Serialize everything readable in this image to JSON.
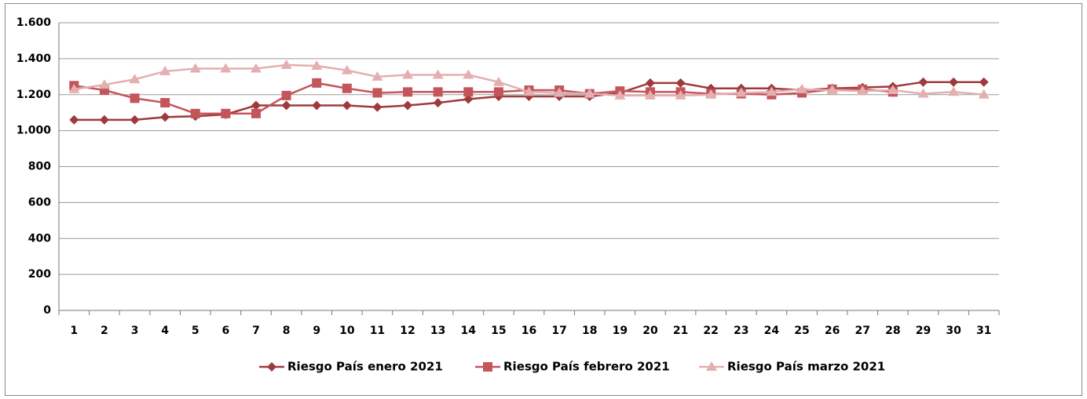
{
  "chart_data": {
    "type": "line",
    "categories": [
      "1",
      "2",
      "3",
      "4",
      "5",
      "6",
      "7",
      "8",
      "9",
      "10",
      "11",
      "12",
      "13",
      "14",
      "15",
      "16",
      "17",
      "18",
      "19",
      "20",
      "21",
      "22",
      "23",
      "24",
      "25",
      "26",
      "27",
      "28",
      "29",
      "30",
      "31"
    ],
    "series": [
      {
        "name": "Riesgo País enero 2021",
        "color": "#9e3a3c",
        "marker": "diamond",
        "values": [
          1060,
          1060,
          1060,
          1075,
          1080,
          1090,
          1140,
          1140,
          1140,
          1140,
          1130,
          1140,
          1155,
          1175,
          1190,
          1190,
          1190,
          1190,
          1210,
          1265,
          1265,
          1235,
          1235,
          1235,
          1225,
          1235,
          1240,
          1245,
          1270,
          1270,
          1270
        ]
      },
      {
        "name": "Riesgo País febrero 2021",
        "color": "#c4555a",
        "marker": "square",
        "values": [
          1250,
          1225,
          1180,
          1155,
          1095,
          1095,
          1095,
          1195,
          1265,
          1235,
          1210,
          1215,
          1215,
          1215,
          1215,
          1225,
          1225,
          1205,
          1220,
          1215,
          1215,
          1205,
          1205,
          1200,
          1210,
          1230,
          1230,
          1215,
          null,
          null,
          null
        ]
      },
      {
        "name": "Riesgo País marzo 2021",
        "color": "#e3afb0",
        "marker": "triangle",
        "values": [
          1230,
          1255,
          1285,
          1330,
          1345,
          1345,
          1345,
          1365,
          1360,
          1335,
          1300,
          1310,
          1310,
          1310,
          1270,
          1215,
          1210,
          1205,
          1195,
          1195,
          1195,
          1200,
          1210,
          1215,
          1230,
          1225,
          1220,
          1225,
          1205,
          1215,
          1200
        ]
      }
    ],
    "ylim": [
      0,
      1600
    ],
    "yticks": [
      0,
      200,
      400,
      600,
      800,
      {
        "value": 1000,
        "label": "1.000"
      },
      {
        "value": 1200,
        "label": "1.200"
      },
      {
        "value": 1400,
        "label": "1.400"
      },
      {
        "value": 1600,
        "label": "1.600"
      }
    ],
    "grid": true
  }
}
